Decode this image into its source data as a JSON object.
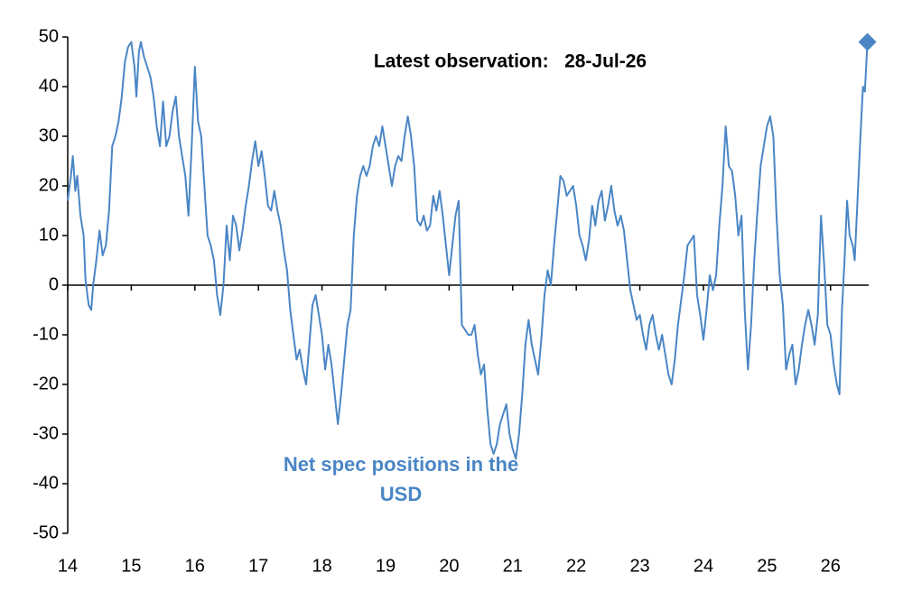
{
  "chart_data": {
    "type": "line",
    "annotation": "Latest observation:   28-Jul-26",
    "xlim": [
      14,
      26.6
    ],
    "xticks": [
      14,
      15,
      16,
      17,
      18,
      19,
      20,
      21,
      22,
      23,
      24,
      25,
      26
    ],
    "ylim": [
      -50,
      50
    ],
    "yticks": [
      -50,
      -40,
      -30,
      -20,
      -10,
      0,
      10,
      20,
      30,
      40,
      50
    ],
    "last_marker": "diamond",
    "x": [
      14.0,
      14.05,
      14.08,
      14.12,
      14.15,
      14.2,
      14.25,
      14.28,
      14.33,
      14.37,
      14.4,
      14.45,
      14.5,
      14.55,
      14.6,
      14.65,
      14.7,
      14.75,
      14.8,
      14.85,
      14.9,
      14.95,
      15.0,
      15.05,
      15.08,
      15.12,
      15.15,
      15.2,
      15.25,
      15.3,
      15.35,
      15.4,
      15.45,
      15.5,
      15.55,
      15.6,
      15.65,
      15.7,
      15.75,
      15.8,
      15.85,
      15.9,
      15.95,
      16.0,
      16.05,
      16.1,
      16.15,
      16.2,
      16.25,
      16.3,
      16.35,
      16.4,
      16.45,
      16.5,
      16.55,
      16.6,
      16.65,
      16.7,
      16.75,
      16.8,
      16.85,
      16.9,
      16.95,
      17.0,
      17.05,
      17.1,
      17.15,
      17.2,
      17.25,
      17.3,
      17.35,
      17.4,
      17.45,
      17.5,
      17.55,
      17.6,
      17.65,
      17.7,
      17.75,
      17.8,
      17.85,
      17.9,
      17.95,
      18.0,
      18.05,
      18.1,
      18.15,
      18.2,
      18.25,
      18.3,
      18.35,
      18.4,
      18.45,
      18.5,
      18.55,
      18.6,
      18.65,
      18.7,
      18.75,
      18.8,
      18.85,
      18.9,
      18.95,
      19.0,
      19.05,
      19.1,
      19.15,
      19.2,
      19.25,
      19.3,
      19.35,
      19.4,
      19.45,
      19.5,
      19.55,
      19.6,
      19.65,
      19.7,
      19.75,
      19.8,
      19.85,
      19.9,
      19.95,
      20.0,
      20.05,
      20.1,
      20.15,
      20.2,
      20.25,
      20.3,
      20.35,
      20.4,
      20.45,
      20.5,
      20.55,
      20.6,
      20.65,
      20.7,
      20.75,
      20.8,
      20.85,
      20.9,
      20.95,
      21.0,
      21.05,
      21.1,
      21.15,
      21.2,
      21.25,
      21.3,
      21.35,
      21.4,
      21.45,
      21.5,
      21.55,
      21.6,
      21.65,
      21.7,
      21.75,
      21.8,
      21.85,
      21.9,
      21.95,
      22.0,
      22.05,
      22.1,
      22.15,
      22.2,
      22.25,
      22.3,
      22.35,
      22.4,
      22.45,
      22.5,
      22.55,
      22.6,
      22.65,
      22.7,
      22.75,
      22.8,
      22.85,
      22.9,
      22.95,
      23.0,
      23.05,
      23.1,
      23.15,
      23.2,
      23.25,
      23.3,
      23.35,
      23.4,
      23.45,
      23.5,
      23.55,
      23.6,
      23.65,
      23.7,
      23.75,
      23.8,
      23.85,
      23.9,
      23.95,
      24.0,
      24.05,
      24.1,
      24.15,
      24.2,
      24.25,
      24.3,
      24.35,
      24.4,
      24.45,
      24.5,
      24.55,
      24.6,
      24.65,
      24.7,
      24.75,
      24.8,
      24.85,
      24.9,
      24.95,
      25.0,
      25.05,
      25.1,
      25.15,
      25.2,
      25.25,
      25.3,
      25.35,
      25.4,
      25.45,
      25.5,
      25.55,
      25.6,
      25.65,
      25.7,
      25.75,
      25.8,
      25.85,
      25.9,
      25.95,
      26.0,
      26.05,
      26.1,
      26.14,
      26.18,
      26.22,
      26.26,
      26.3,
      26.35,
      26.38,
      26.42,
      26.47,
      26.51,
      26.54,
      26.58
    ],
    "series": [
      {
        "name": "Net spec positions in the USD",
        "color": "#4a86c5",
        "values": [
          17,
          22,
          26,
          19,
          22,
          14,
          10,
          1,
          -4,
          -5,
          0,
          5,
          11,
          6,
          8,
          15,
          28,
          30,
          33,
          38,
          45,
          48,
          49,
          44,
          38,
          47,
          49,
          46,
          44,
          42,
          38,
          32,
          28,
          37,
          28,
          30,
          35,
          38,
          30,
          26,
          22,
          14,
          28,
          44,
          33,
          30,
          20,
          10,
          8,
          5,
          -2,
          -6,
          0,
          12,
          5,
          14,
          12,
          7,
          11,
          16,
          20,
          25,
          29,
          24,
          27,
          22,
          16,
          15,
          19,
          15,
          12,
          7,
          3,
          -5,
          -10,
          -15,
          -13,
          -17,
          -20,
          -12,
          -4,
          -2,
          -6,
          -10,
          -17,
          -12,
          -16,
          -22,
          -28,
          -22,
          -15,
          -8,
          -5,
          10,
          18,
          22,
          24,
          22,
          24,
          28,
          30,
          28,
          32,
          28,
          24,
          20,
          24,
          26,
          25,
          30,
          34,
          30,
          24,
          13,
          12,
          14,
          11,
          12,
          18,
          15,
          19,
          14,
          8,
          2,
          8,
          14,
          17,
          -8,
          -9,
          -10,
          -10,
          -8,
          -14,
          -18,
          -16,
          -25,
          -32,
          -34,
          -32,
          -28,
          -26,
          -24,
          -30,
          -33,
          -35,
          -30,
          -22,
          -12,
          -7,
          -12,
          -15,
          -18,
          -11,
          -2,
          3,
          0,
          8,
          15,
          22,
          21,
          18,
          19,
          20,
          16,
          10,
          8,
          5,
          9,
          16,
          12,
          17,
          19,
          13,
          16,
          20,
          15,
          12,
          14,
          11,
          5,
          -1,
          -4,
          -7,
          -6,
          -10,
          -13,
          -8,
          -6,
          -10,
          -13,
          -10,
          -14,
          -18,
          -20,
          -15,
          -8,
          -3,
          2,
          8,
          9,
          10,
          -2,
          -6,
          -11,
          -5,
          2,
          -1,
          2,
          12,
          20,
          32,
          24,
          23,
          18,
          10,
          14,
          -5,
          -17,
          -8,
          5,
          15,
          24,
          28,
          32,
          34,
          30,
          14,
          2,
          -4,
          -17,
          -14,
          -12,
          -20,
          -17,
          -12,
          -8,
          -5,
          -8,
          -12,
          -6,
          14,
          4,
          -8,
          -10,
          -16,
          -20,
          -22,
          -5,
          5,
          17,
          10,
          8,
          5,
          16,
          30,
          40,
          39,
          49
        ]
      }
    ]
  }
}
